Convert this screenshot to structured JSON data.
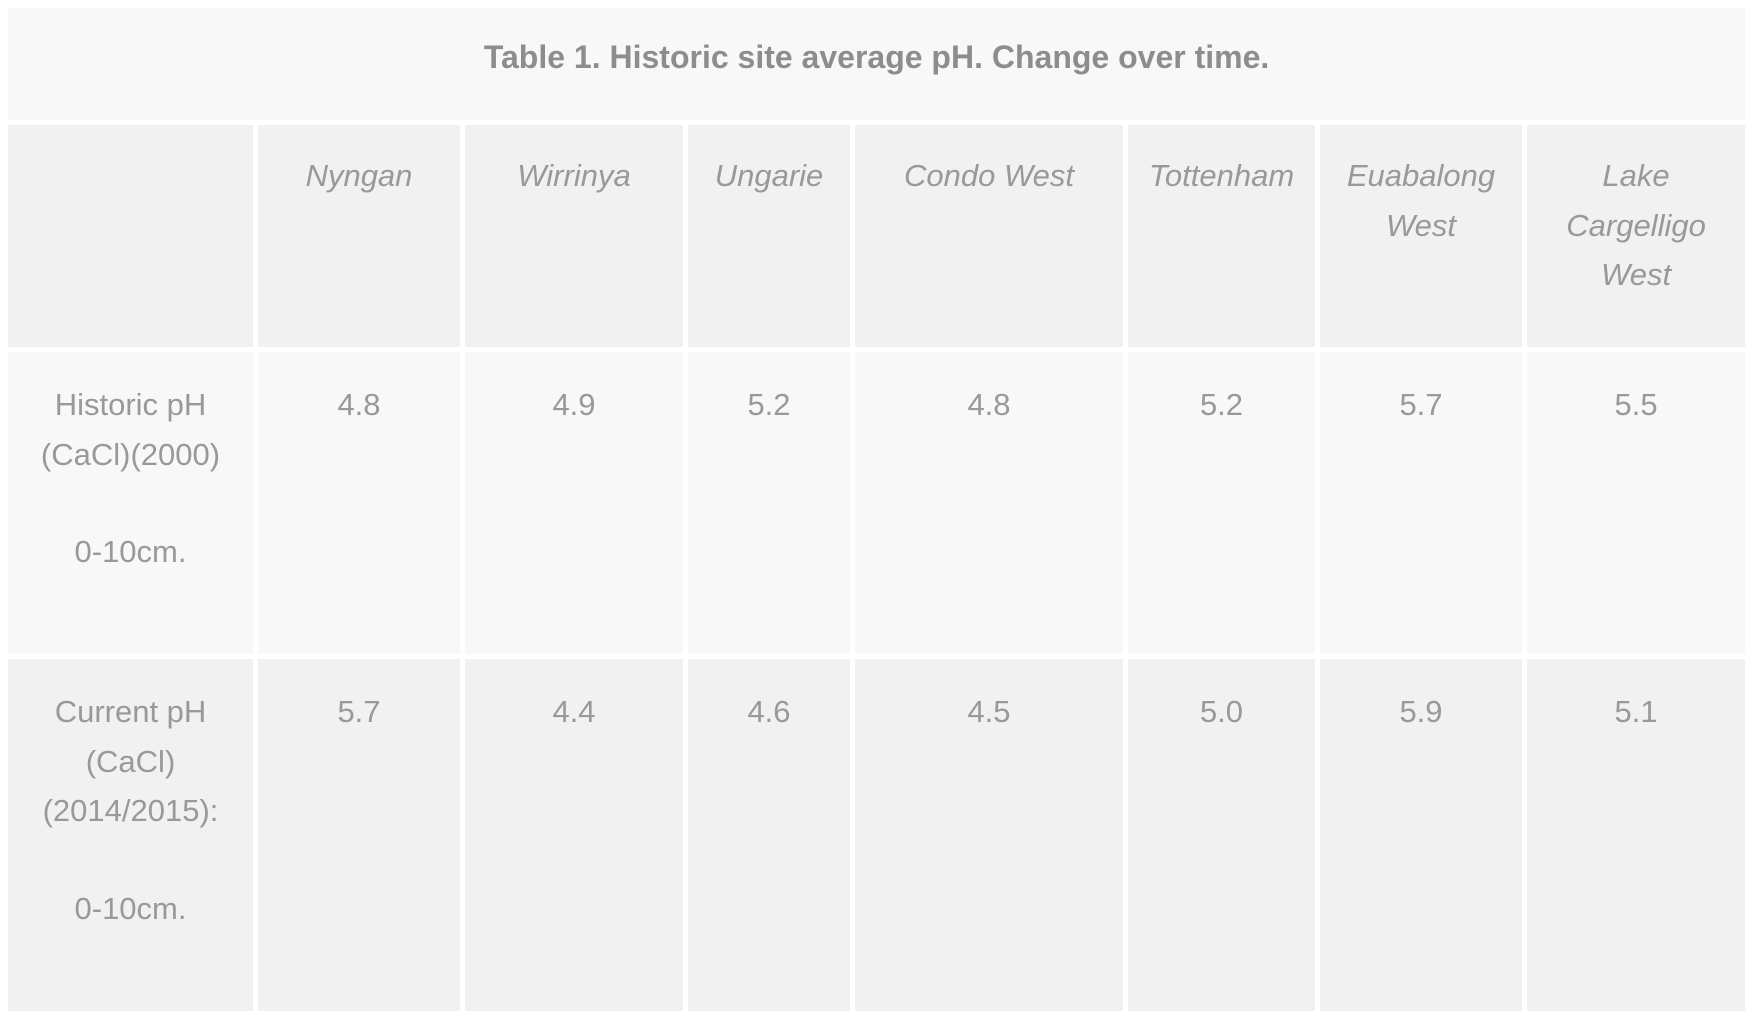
{
  "table": {
    "title": "Table 1. Historic site average pH. Change over time.",
    "columns": [
      "Nyngan",
      "Wirrinya",
      "Ungarie",
      "Condo West",
      "Tottenham",
      "Euabalong West",
      "Lake Cargelligo West"
    ],
    "rows": [
      {
        "label_main": "Historic pH (CaCl)(2000)",
        "label_sub": "0-10cm.",
        "values": [
          "4.8",
          "4.9",
          "5.2",
          "4.8",
          "5.2",
          "5.7",
          "5.5"
        ]
      },
      {
        "label_main": "Current pH (CaCl) (2014/2015):",
        "label_sub": "0-10cm.",
        "values": [
          "5.7",
          "4.4",
          "4.6",
          "4.5",
          "5.0",
          "5.9",
          "5.1"
        ]
      }
    ]
  },
  "colors": {
    "cell_light": "#f8f8f8",
    "cell_dark": "#f1f1f1",
    "text": "#999999",
    "title_text": "#8d8d8d",
    "background": "#ffffff"
  },
  "chart_data": {
    "type": "table",
    "title": "Table 1. Historic site average pH. Change over time.",
    "categories": [
      "Nyngan",
      "Wirrinya",
      "Ungarie",
      "Condo West",
      "Tottenham",
      "Euabalong West",
      "Lake Cargelligo West"
    ],
    "series": [
      {
        "name": "Historic pH (CaCl)(2000) 0-10cm.",
        "values": [
          4.8,
          4.9,
          5.2,
          4.8,
          5.2,
          5.7,
          5.5
        ]
      },
      {
        "name": "Current pH (CaCl) (2014/2015): 0-10cm.",
        "values": [
          5.7,
          4.4,
          4.6,
          4.5,
          5.0,
          5.9,
          5.1
        ]
      }
    ],
    "layout": {
      "striped": true,
      "header_style": "italic",
      "first_column": "row labels"
    }
  }
}
